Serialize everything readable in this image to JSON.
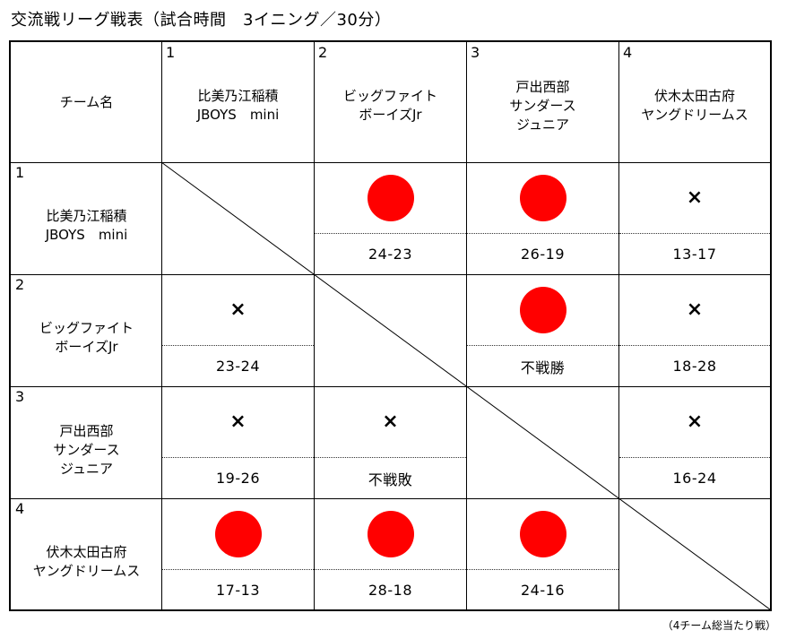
{
  "title": "交流戦リーグ戦表（試合時間　3イニング／30分）",
  "corner_label": "チーム名",
  "teams": [
    {
      "number": "1",
      "lines": [
        "比美乃江稲積",
        "JBOYS　mini"
      ]
    },
    {
      "number": "2",
      "lines": [
        "ビッグファイト",
        "ボーイズJr"
      ]
    },
    {
      "number": "3",
      "lines": [
        "戸出西部",
        "サンダース",
        "ジュニア"
      ]
    },
    {
      "number": "4",
      "lines": [
        "伏木太田古府",
        "ヤングドリームス"
      ]
    }
  ],
  "results": [
    [
      null,
      {
        "mark": "win",
        "score": "24-23"
      },
      {
        "mark": "win",
        "score": "26-19"
      },
      {
        "mark": "loss",
        "score": "13-17"
      }
    ],
    [
      {
        "mark": "loss",
        "score": "23-24"
      },
      null,
      {
        "mark": "win",
        "score": "不戦勝"
      },
      {
        "mark": "loss",
        "score": "18-28"
      }
    ],
    [
      {
        "mark": "loss",
        "score": "19-26"
      },
      {
        "mark": "loss",
        "score": "不戦敗"
      },
      null,
      {
        "mark": "loss",
        "score": "16-24"
      }
    ],
    [
      {
        "mark": "win",
        "score": "17-13"
      },
      {
        "mark": "win",
        "score": "28-18"
      },
      {
        "mark": "win",
        "score": "24-16"
      },
      null
    ]
  ],
  "loss_symbol": "×",
  "colors": {
    "win": "#ff0000"
  },
  "footnote": "（4チーム総当たり戦）"
}
